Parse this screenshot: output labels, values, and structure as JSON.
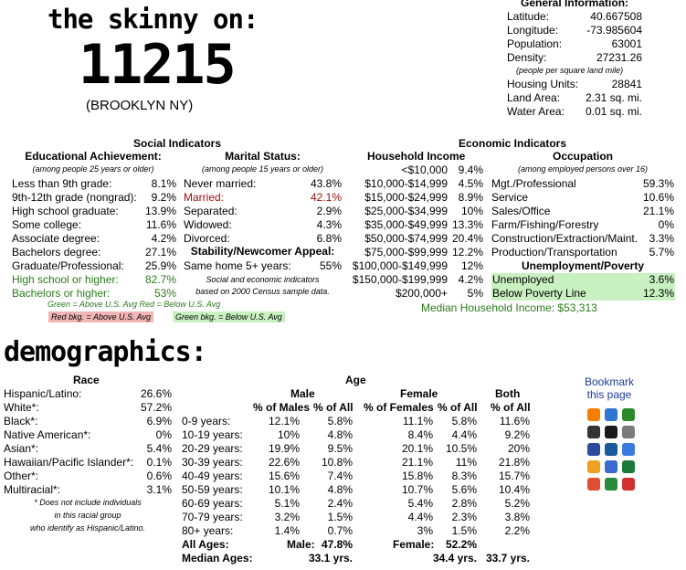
{
  "header": {
    "title": "the skinny on:",
    "zip": "11215",
    "place": "(BROOKLYN NY)"
  },
  "general": {
    "heading": "General Information:",
    "rows": [
      {
        "label": "Latitude:",
        "value": "40.667508"
      },
      {
        "label": "Longitude:",
        "value": "-73.985604"
      },
      {
        "label": "Population:",
        "value": "63001"
      },
      {
        "label": "Density:",
        "value": "27231.26"
      }
    ],
    "density_note": "(people per square land mile)",
    "rows2": [
      {
        "label": "Housing Units:",
        "value": "28841"
      },
      {
        "label": "Land Area:",
        "value": "2.31 sq. mi."
      },
      {
        "label": "Water Area:",
        "value": "0.01 sq. mi."
      }
    ]
  },
  "social": {
    "heading": "Social Indicators",
    "education": {
      "heading": "Educational Achievement:",
      "note": "(among people 25 years or older)",
      "rows": [
        {
          "label": "Less than 9th grade:",
          "value": "8.1%"
        },
        {
          "label": "9th-12th grade (nongrad):",
          "value": "9.2%"
        },
        {
          "label": "High school graduate:",
          "value": "13.9%"
        },
        {
          "label": "Some college:",
          "value": "11.6%"
        },
        {
          "label": "Associate degree:",
          "value": "4.2%"
        },
        {
          "label": "Bachelors degree:",
          "value": "27.1%"
        },
        {
          "label": "Graduate/Professional:",
          "value": "25.9%"
        },
        {
          "label": "High school or higher:",
          "value": "82.7%"
        },
        {
          "label": "Bachelors or higher:",
          "value": "53%"
        }
      ]
    },
    "marital": {
      "heading": "Marital Status:",
      "note": "(among people 15 years or older)",
      "rows": [
        {
          "label": "Never married:",
          "value": "43.8%"
        },
        {
          "label": "Married:",
          "value": "42.1%"
        },
        {
          "label": "Separated:",
          "value": "2.9%"
        },
        {
          "label": "Widowed:",
          "value": "4.3%"
        },
        {
          "label": "Divorced:",
          "value": "6.8%"
        }
      ]
    },
    "stability": {
      "heading": "Stability/Newcomer Appeal:",
      "label": "Same home 5+ years:",
      "value": "55%"
    },
    "census_note_1": "Social and economic indicators",
    "census_note_2": "based on 2000 Census sample data.",
    "legend_1": "Green = Above U.S. Avg Red = Below U.S. Avg",
    "legend_red": "Red bkg. = Above U.S. Avg",
    "legend_green": "Green bkg. = Below U.S. Avg"
  },
  "economic": {
    "heading": "Economic Indicators",
    "income": {
      "heading": "Household Income",
      "rows": [
        {
          "label": "<$10,000",
          "value": "9.4%"
        },
        {
          "label": "$10,000-$14,999",
          "value": "4.5%"
        },
        {
          "label": "$15,000-$24,999",
          "value": "8.9%"
        },
        {
          "label": "$25,000-$34,999",
          "value": "10%"
        },
        {
          "label": "$35,000-$49,999",
          "value": "13.3%"
        },
        {
          "label": "$50,000-$74,999",
          "value": "20.4%"
        },
        {
          "label": "$75,000-$99,999",
          "value": "12.2%"
        },
        {
          "label": "$100,000-$149,999",
          "value": "12%"
        },
        {
          "label": "$150,000-$199,999",
          "value": "4.2%"
        },
        {
          "label": "$200,000+",
          "value": "5%"
        }
      ],
      "median": "Median Household Income: $53,313"
    },
    "occupation": {
      "heading": "Occupation",
      "note": "(among employed persons over 16)",
      "rows": [
        {
          "label": "Mgt./Professional",
          "value": "59.3%"
        },
        {
          "label": "Service",
          "value": "10.6%"
        },
        {
          "label": "Sales/Office",
          "value": "21.1%"
        },
        {
          "label": "Farm/Fishing/Forestry",
          "value": "0%"
        },
        {
          "label": "Construction/Extraction/Maint.",
          "value": "3.3%"
        },
        {
          "label": "Production/Transportation",
          "value": "5.7%"
        }
      ]
    },
    "unemployment": {
      "heading": "Unemployment/Poverty",
      "rows": [
        {
          "label": "Unemployed",
          "value": "3.6%"
        },
        {
          "label": "Below Poverty Line",
          "value": "12.3%"
        }
      ]
    }
  },
  "demographics": {
    "heading": "demographics:",
    "race": {
      "heading": "Race",
      "rows": [
        {
          "label": "Hispanic/Latino:",
          "value": "26.6%"
        },
        {
          "label": "White*:",
          "value": "57.2%"
        },
        {
          "label": "Black*:",
          "value": "6.9%"
        },
        {
          "label": "Native American*:",
          "value": "0%"
        },
        {
          "label": "Asian*:",
          "value": "5.4%"
        },
        {
          "label": "Hawaiian/Pacific Islander*:",
          "value": "0.1%"
        },
        {
          "label": "Other*:",
          "value": "0.6%"
        },
        {
          "label": "Multiracial*:",
          "value": "3.1%"
        }
      ],
      "note_1": "* Does not include individuals",
      "note_2": "in this racial group",
      "note_3": "who identify as Hispanic/Latino."
    },
    "age": {
      "heading": "Age",
      "male_heading": "Male",
      "female_heading": "Female",
      "both_heading": "Both",
      "col_pct_males": "% of Males",
      "col_pct_all_m": "% of All",
      "col_pct_females": "% of Females",
      "col_pct_all_f": "% of All",
      "col_pct_all_b": "% of All",
      "rows": [
        {
          "label": "0-9 years:",
          "m": "12.1%",
          "ma": "5.8%",
          "f": "11.1%",
          "fa": "5.8%",
          "b": "11.6%"
        },
        {
          "label": "10-19 years:",
          "m": "10%",
          "ma": "4.8%",
          "f": "8.4%",
          "fa": "4.4%",
          "b": "9.2%"
        },
        {
          "label": "20-29 years:",
          "m": "19.9%",
          "ma": "9.5%",
          "f": "20.1%",
          "fa": "10.5%",
          "b": "20%"
        },
        {
          "label": "30-39 years:",
          "m": "22.6%",
          "ma": "10.8%",
          "f": "21.1%",
          "fa": "11%",
          "b": "21.8%"
        },
        {
          "label": "40-49 years:",
          "m": "15.6%",
          "ma": "7.4%",
          "f": "15.8%",
          "fa": "8.3%",
          "b": "15.7%"
        },
        {
          "label": "50-59 years:",
          "m": "10.1%",
          "ma": "4.8%",
          "f": "10.7%",
          "fa": "5.6%",
          "b": "10.4%"
        },
        {
          "label": "60-69 years:",
          "m": "5.1%",
          "ma": "2.4%",
          "f": "5.4%",
          "fa": "2.8%",
          "b": "5.2%"
        },
        {
          "label": "70-79 years:",
          "m": "3.2%",
          "ma": "1.5%",
          "f": "4.4%",
          "fa": "2.3%",
          "b": "3.8%"
        },
        {
          "label": "80+ years:",
          "m": "1.4%",
          "ma": "0.7%",
          "f": "3%",
          "fa": "1.5%",
          "b": "2.2%"
        }
      ],
      "all_ages_label": "All Ages:",
      "male_label": "Male:",
      "male_value": "47.8%",
      "female_label": "Female:",
      "female_value": "52.2%",
      "median_label": "Median Ages:",
      "median_male": "33.1 yrs.",
      "median_female": "34.4 yrs.",
      "median_both": "33.7 yrs."
    }
  },
  "bookmark": {
    "line1": "Bookmark",
    "line2": "this page",
    "icons": [
      "blogger-icon",
      "delicious-icon",
      "digg-icon",
      "furl-icon",
      "simpy-icon",
      "spurl-icon",
      "yahoo-icon",
      "newsvine-icon",
      "magnolia-icon",
      "reddit-icon",
      "technorati-icon",
      "ma-gnolia-icon",
      "stumbleupon-icon",
      "google-icon",
      "yahoo-bookmarks-icon"
    ]
  }
}
